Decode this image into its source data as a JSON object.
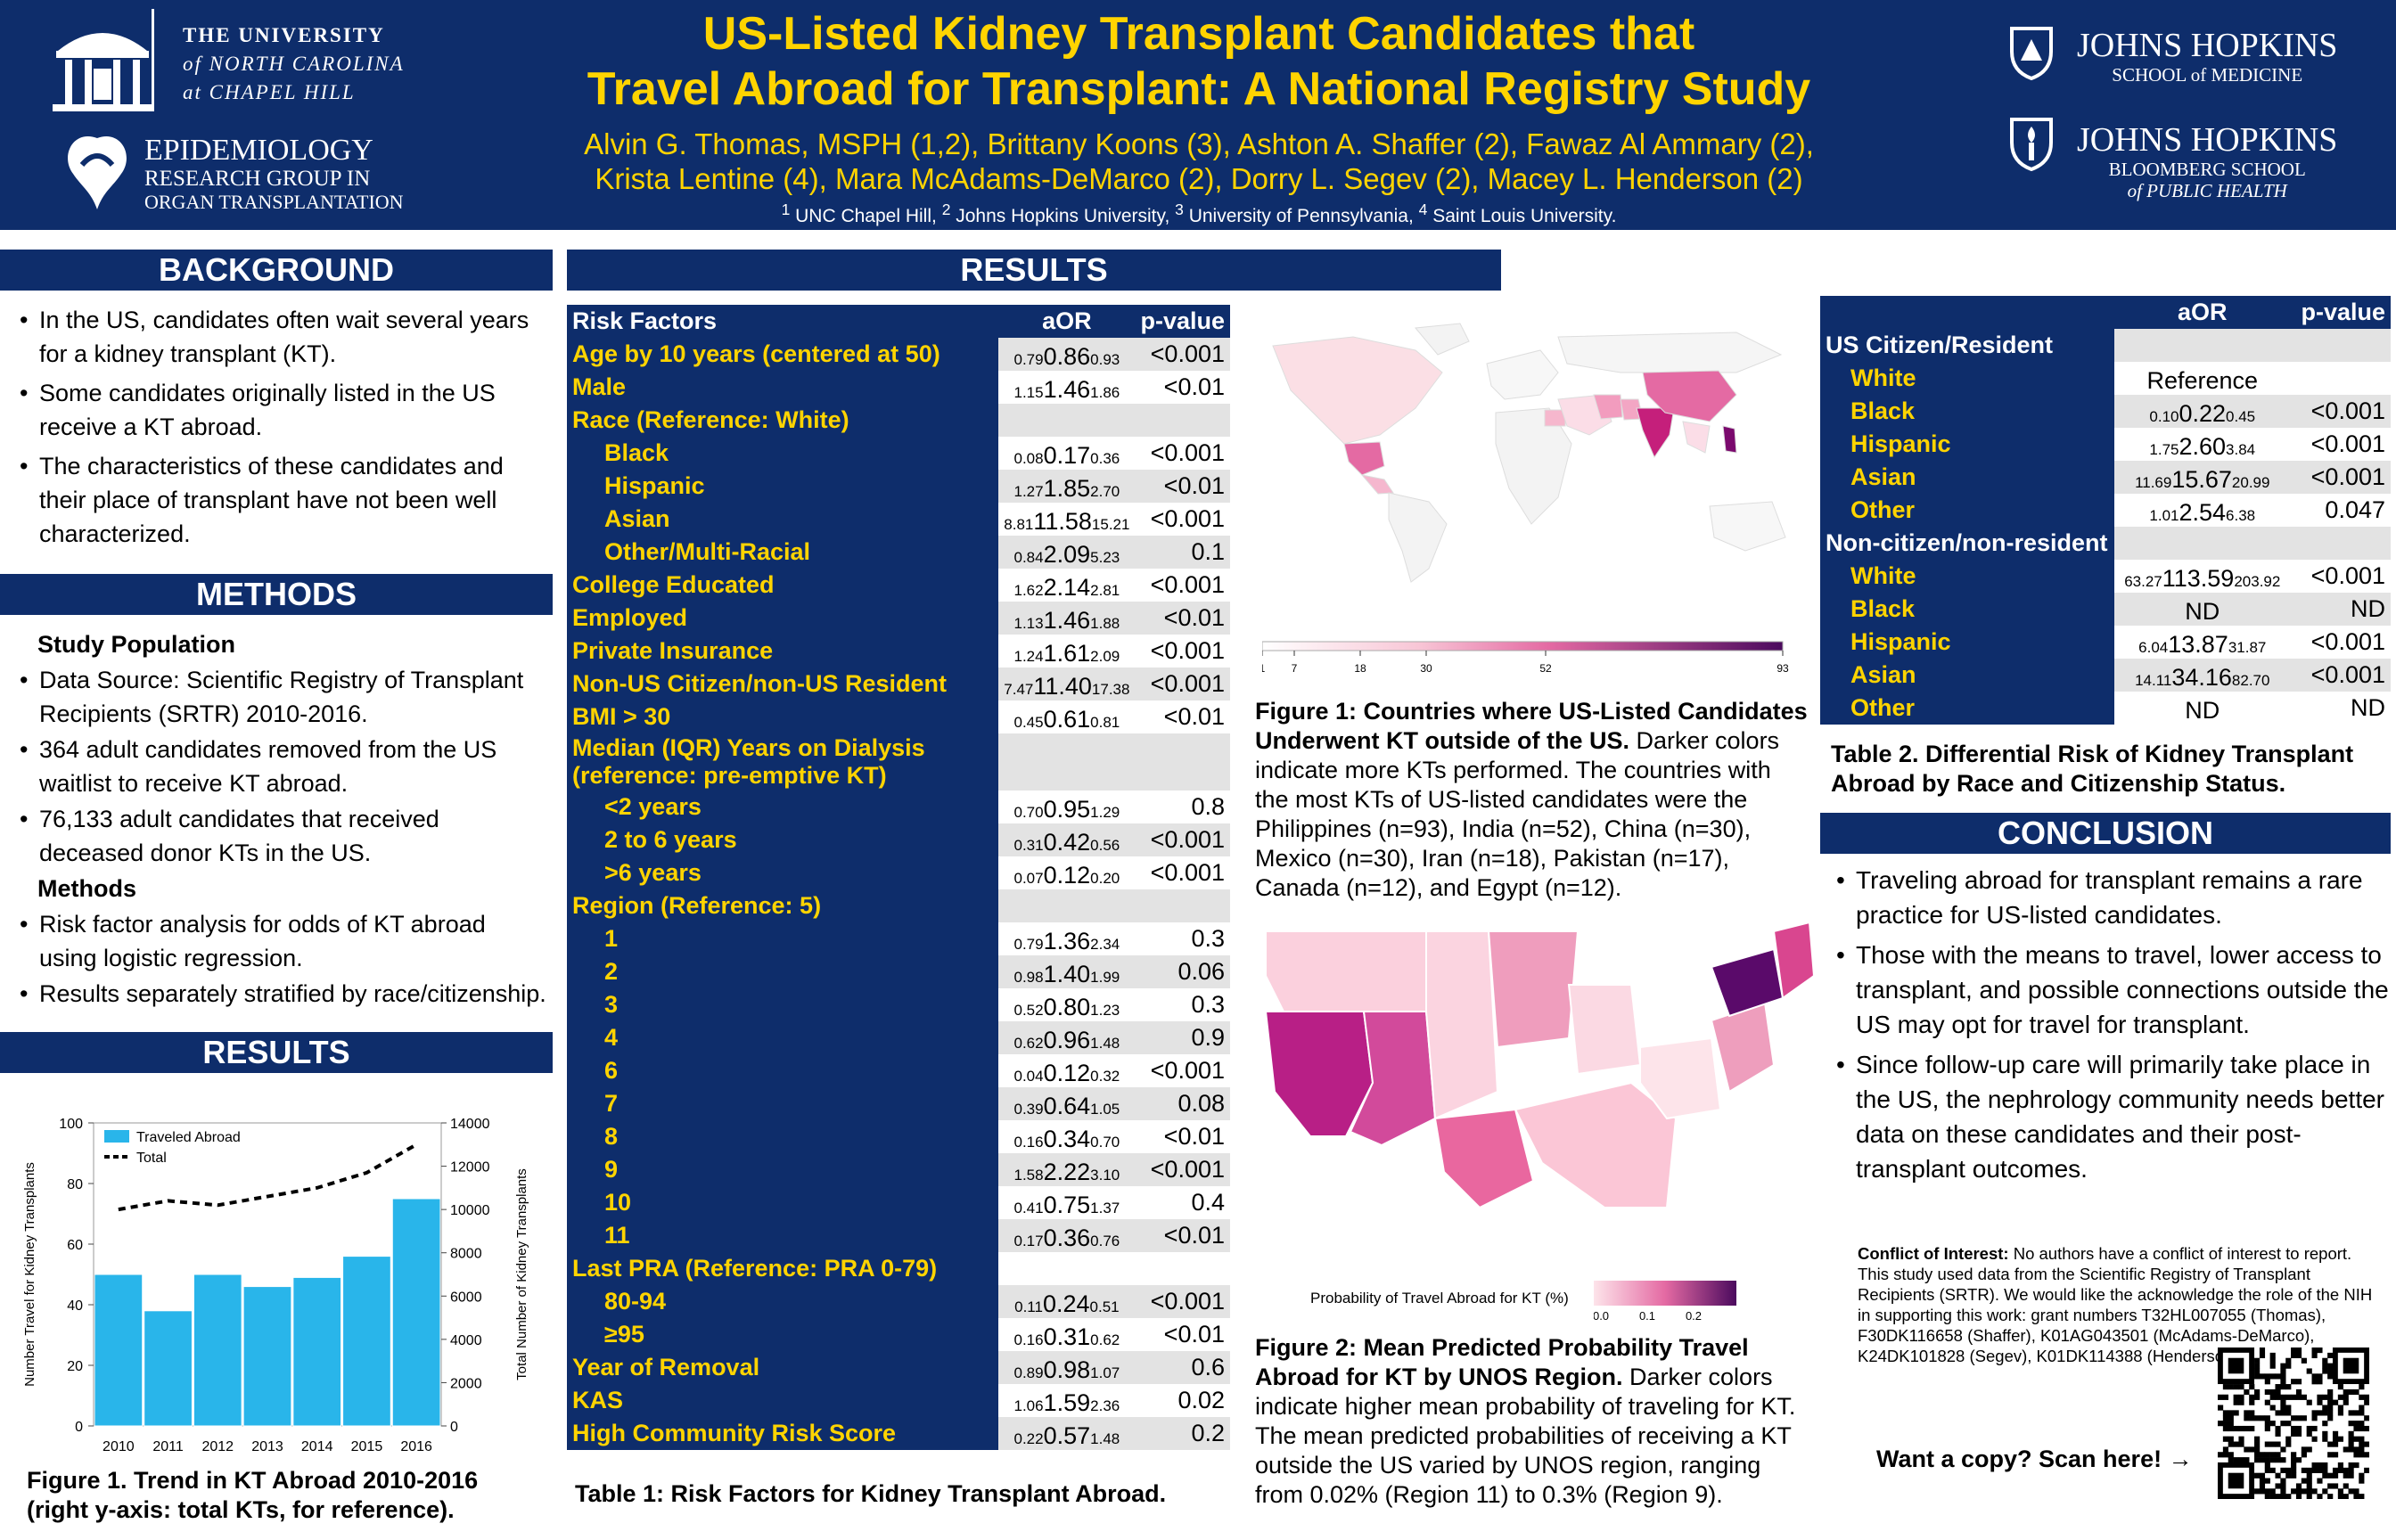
{
  "header": {
    "title_line1": "US-Listed Kidney Transplant Candidates that",
    "title_line2": "Travel Abroad for Transplant: A National Registry Study",
    "authors_line1": "Alvin G. Thomas, MSPH (1,2), Brittany Koons (3), Ashton A. Shaffer (2), Fawaz Al Ammary (2),",
    "authors_line2": "Krista Lentine (4), Mara McAdams-DeMarco (2), Dorry L. Segev (2), Macey L. Henderson (2)",
    "aff1": "1",
    "aff1_name": " UNC Chapel Hill, ",
    "aff2": "2",
    "aff2_name": " Johns Hopkins University, ",
    "aff3": "3",
    "aff3_name": " University of Pennsylvania, ",
    "aff4": "4",
    "aff4_name": " Saint Louis University.",
    "unc_line1": "THE UNIVERSITY",
    "unc_line2": "of NORTH CAROLINA",
    "unc_line3": "at CHAPEL HILL",
    "erg_line1": "EPIDEMIOLOGY",
    "erg_line2": "RESEARCH GROUP IN",
    "erg_line3": "ORGAN TRANSPLANTATION",
    "jh1_name": "JOHNS HOPKINS",
    "jh1_sub1": "SCHOOL of MEDICINE",
    "jh2_name": "JOHNS HOPKINS",
    "jh2_sub1": "BLOOMBERG SCHOOL",
    "jh2_sub2": "of PUBLIC HEALTH"
  },
  "background": {
    "title": "BACKGROUND",
    "bullets": [
      "In the US, candidates often wait several years for a kidney transplant (KT).",
      "Some candidates originally listed in the US receive a KT abroad.",
      "The characteristics of these candidates and their place of transplant have not been well characterized."
    ]
  },
  "methods": {
    "title": "METHODS",
    "study_pop": "Study Population",
    "bullets1": [
      "Data Source: Scientific Registry of Transplant Recipients (SRTR) 2010-2016.",
      "364 adult candidates removed from the US waitlist to receive KT abroad.",
      "76,133 adult candidates that received deceased donor KTs in the US."
    ],
    "methods_head": "Methods",
    "bullets2": [
      "Risk factor analysis for odds of KT abroad using logistic regression.",
      "Results separately stratified by race/citizenship."
    ]
  },
  "results_left": {
    "title": "RESULTS"
  },
  "results_main": {
    "title": "RESULTS"
  },
  "chart_data": {
    "type": "bar",
    "categories": [
      "2010",
      "2011",
      "2012",
      "2013",
      "2014",
      "2015",
      "2016"
    ],
    "series": [
      {
        "name": "Traveled Abroad",
        "values": [
          50,
          38,
          50,
          46,
          49,
          56,
          75
        ]
      },
      {
        "name": "Total",
        "values": [
          10000,
          10400,
          10200,
          10600,
          11000,
          11700,
          13000
        ]
      }
    ],
    "ylabel": "Number Travel for Kidney Transplants",
    "y2label": "Total Number of Kidney Transplants",
    "ylim": [
      0,
      100
    ],
    "y2lim": [
      0,
      14000
    ],
    "yticks": [
      "0",
      "20",
      "40",
      "60",
      "80",
      "100"
    ],
    "y2ticks": [
      "0",
      "2000",
      "4000",
      "6000",
      "8000",
      "10000",
      "12000",
      "14000"
    ],
    "legend": "top-left",
    "bar_color": "#29b5ea"
  },
  "fig1_left_caption": "Figure 1. Trend in KT Abroad 2010-2016 (right y-axis: total KTs, for reference).",
  "table1": {
    "head": {
      "factor": "Risk Factors",
      "aor": "aOR",
      "pv": "p-value"
    },
    "rows": [
      {
        "l": "Age by 10 years (centered at 50)",
        "lo": "0.79",
        "e": "0.86",
        "hi": "0.93",
        "p": "<0.001",
        "ind": 0
      },
      {
        "l": "Male",
        "lo": "1.15",
        "e": "1.46",
        "hi": "1.86",
        "p": "<0.01",
        "ind": 0
      },
      {
        "l": "Race (Reference: White)",
        "lo": "",
        "e": "",
        "hi": "",
        "p": "",
        "ind": 0
      },
      {
        "l": "Black",
        "lo": "0.08",
        "e": "0.17",
        "hi": "0.36",
        "p": "<0.001",
        "ind": 1
      },
      {
        "l": "Hispanic",
        "lo": "1.27",
        "e": "1.85",
        "hi": "2.70",
        "p": "<0.01",
        "ind": 1
      },
      {
        "l": "Asian",
        "lo": "8.81",
        "e": "11.58",
        "hi": "15.21",
        "p": "<0.001",
        "ind": 1
      },
      {
        "l": "Other/Multi-Racial",
        "lo": "0.84",
        "e": "2.09",
        "hi": "5.23",
        "p": "0.1",
        "ind": 1
      },
      {
        "l": "College Educated",
        "lo": "1.62",
        "e": "2.14",
        "hi": "2.81",
        "p": "<0.001",
        "ind": 0
      },
      {
        "l": "Employed",
        "lo": "1.13",
        "e": "1.46",
        "hi": "1.88",
        "p": "<0.01",
        "ind": 0
      },
      {
        "l": "Private Insurance",
        "lo": "1.24",
        "e": "1.61",
        "hi": "2.09",
        "p": "<0.001",
        "ind": 0
      },
      {
        "l": "Non-US Citizen/non-US Resident",
        "lo": "7.47",
        "e": "11.40",
        "hi": "17.38",
        "p": "<0.001",
        "ind": 0
      },
      {
        "l": "BMI > 30",
        "lo": "0.45",
        "e": "0.61",
        "hi": "0.81",
        "p": "<0.01",
        "ind": 0
      },
      {
        "l": "Median (IQR) Years on Dialysis (reference: pre-emptive KT)",
        "lo": "",
        "e": "",
        "hi": "",
        "p": "",
        "ind": 0,
        "tall": 1
      },
      {
        "l": "<2 years",
        "lo": "0.70",
        "e": "0.95",
        "hi": "1.29",
        "p": "0.8",
        "ind": 1
      },
      {
        "l": "2 to 6 years",
        "lo": "0.31",
        "e": "0.42",
        "hi": "0.56",
        "p": "<0.001",
        "ind": 1
      },
      {
        "l": ">6 years",
        "lo": "0.07",
        "e": "0.12",
        "hi": "0.20",
        "p": "<0.001",
        "ind": 1
      },
      {
        "l": "Region (Reference: 5)",
        "lo": "",
        "e": "",
        "hi": "",
        "p": "",
        "ind": 0
      },
      {
        "l": "1",
        "lo": "0.79",
        "e": "1.36",
        "hi": "2.34",
        "p": "0.3",
        "ind": 1
      },
      {
        "l": "2",
        "lo": "0.98",
        "e": "1.40",
        "hi": "1.99",
        "p": "0.06",
        "ind": 1
      },
      {
        "l": "3",
        "lo": "0.52",
        "e": "0.80",
        "hi": "1.23",
        "p": "0.3",
        "ind": 1
      },
      {
        "l": "4",
        "lo": "0.62",
        "e": "0.96",
        "hi": "1.48",
        "p": "0.9",
        "ind": 1
      },
      {
        "l": "6",
        "lo": "0.04",
        "e": "0.12",
        "hi": "0.32",
        "p": "<0.001",
        "ind": 1
      },
      {
        "l": "7",
        "lo": "0.39",
        "e": "0.64",
        "hi": "1.05",
        "p": "0.08",
        "ind": 1
      },
      {
        "l": "8",
        "lo": "0.16",
        "e": "0.34",
        "hi": "0.70",
        "p": "<0.01",
        "ind": 1
      },
      {
        "l": "9",
        "lo": "1.58",
        "e": "2.22",
        "hi": "3.10",
        "p": "<0.001",
        "ind": 1
      },
      {
        "l": "10",
        "lo": "0.41",
        "e": "0.75",
        "hi": "1.37",
        "p": "0.4",
        "ind": 1
      },
      {
        "l": "11",
        "lo": "0.17",
        "e": "0.36",
        "hi": "0.76",
        "p": "<0.01",
        "ind": 1
      },
      {
        "l": "Last PRA (Reference: PRA 0-79)",
        "lo": "",
        "e": "",
        "hi": "",
        "p": "",
        "ind": 0
      },
      {
        "l": "80-94",
        "lo": "0.11",
        "e": "0.24",
        "hi": "0.51",
        "p": "<0.001",
        "ind": 1
      },
      {
        "l": "≥95",
        "lo": "0.16",
        "e": "0.31",
        "hi": "0.62",
        "p": "<0.01",
        "ind": 1
      },
      {
        "l": "Year of Removal",
        "lo": "0.89",
        "e": "0.98",
        "hi": "1.07",
        "p": "0.6",
        "ind": 0
      },
      {
        "l": "KAS",
        "lo": "1.06",
        "e": "1.59",
        "hi": "2.36",
        "p": "0.02",
        "ind": 0
      },
      {
        "l": "High Community Risk Score",
        "lo": "0.22",
        "e": "0.57",
        "hi": "1.48",
        "p": "0.2",
        "ind": 0
      }
    ],
    "caption": "Table 1: Risk Factors for Kidney Transplant Abroad."
  },
  "fig1_map": {
    "legend_ticks": [
      "1",
      "7",
      "18",
      "30",
      "52",
      "93"
    ],
    "caption_bold": "Figure 1: Countries where US-Listed Candidates Underwent KT outside of the US.",
    "caption": " Darker colors indicate more KTs performed. The countries with the most KTs of US-listed candidates were the Philippines (n=93), India (n=52), China (n=30), Mexico (n=30), Iran (n=18), Pakistan (n=17), Canada (n=12), and Egypt (n=12)."
  },
  "fig2_map": {
    "legend_title": "Probability of Travel Abroad for KT (%)",
    "legend_ticks": [
      "0.0",
      "0.1",
      "0.2"
    ],
    "caption_bold": "Figure 2: Mean Predicted Probability Travel Abroad for KT by UNOS Region.",
    "caption": " Darker colors indicate higher mean probability of traveling for KT. The mean predicted probabilities of receiving a KT outside the US varied by UNOS region, ranging from 0.02% (Region 11) to 0.3% (Region 9)."
  },
  "table2": {
    "head": {
      "aor": "aOR",
      "pv": "p-value"
    },
    "rows": [
      {
        "l": "US Citizen/Resident",
        "lo": "",
        "e": "",
        "hi": "",
        "p": "",
        "g": 1
      },
      {
        "l": "White",
        "lo": "",
        "e": "Reference",
        "hi": "",
        "p": "",
        "g": 0
      },
      {
        "l": "Black",
        "lo": "0.10",
        "e": "0.22",
        "hi": "0.45",
        "p": "<0.001",
        "g": 0
      },
      {
        "l": "Hispanic",
        "lo": "1.75",
        "e": "2.60",
        "hi": "3.84",
        "p": "<0.001",
        "g": 0
      },
      {
        "l": "Asian",
        "lo": "11.69",
        "e": "15.67",
        "hi": "20.99",
        "p": "<0.001",
        "g": 0
      },
      {
        "l": "Other",
        "lo": "1.01",
        "e": "2.54",
        "hi": "6.38",
        "p": "0.047",
        "g": 0
      },
      {
        "l": "Non-citizen/non-resident",
        "lo": "",
        "e": "",
        "hi": "",
        "p": "",
        "g": 1
      },
      {
        "l": "White",
        "lo": "63.27",
        "e": "113.59",
        "hi": "203.92",
        "p": "<0.001",
        "g": 0
      },
      {
        "l": "Black",
        "lo": "",
        "e": "ND",
        "hi": "",
        "p": "ND",
        "g": 0
      },
      {
        "l": "Hispanic",
        "lo": "6.04",
        "e": "13.87",
        "hi": "31.87",
        "p": "<0.001",
        "g": 0
      },
      {
        "l": "Asian",
        "lo": "14.11",
        "e": "34.16",
        "hi": "82.70",
        "p": "<0.001",
        "g": 0
      },
      {
        "l": "Other",
        "lo": "",
        "e": "ND",
        "hi": "",
        "p": "ND",
        "g": 0
      }
    ],
    "caption": "Table 2. Differential Risk of Kidney Transplant Abroad by Race and Citizenship Status."
  },
  "conclusion": {
    "title": "CONCLUSION",
    "bullets": [
      "Traveling abroad for transplant remains a rare practice for US-listed candidates.",
      "Those with the means to travel, lower access to transplant, and possible connections outside the US may opt for travel for transplant.",
      "Since follow-up care will primarily take place in the US, the nephrology community needs better data on these candidates and their post-transplant outcomes."
    ]
  },
  "coi": {
    "bold": "Conflict of Interest:",
    "text": " No authors have a conflict of interest to report. This study used data from the Scientific Registry of Transplant Recipients (SRTR). We would like the acknowledge the role of the NIH in supporting this work: grant numbers T32HL007055 (Thomas), F30DK116658 (Shaffer), K01AG043501 (McAdams-DeMarco), K24DK101828 (Segev), K01DK114388 (Henderson)."
  },
  "scan": "Want a copy? Scan here! →"
}
